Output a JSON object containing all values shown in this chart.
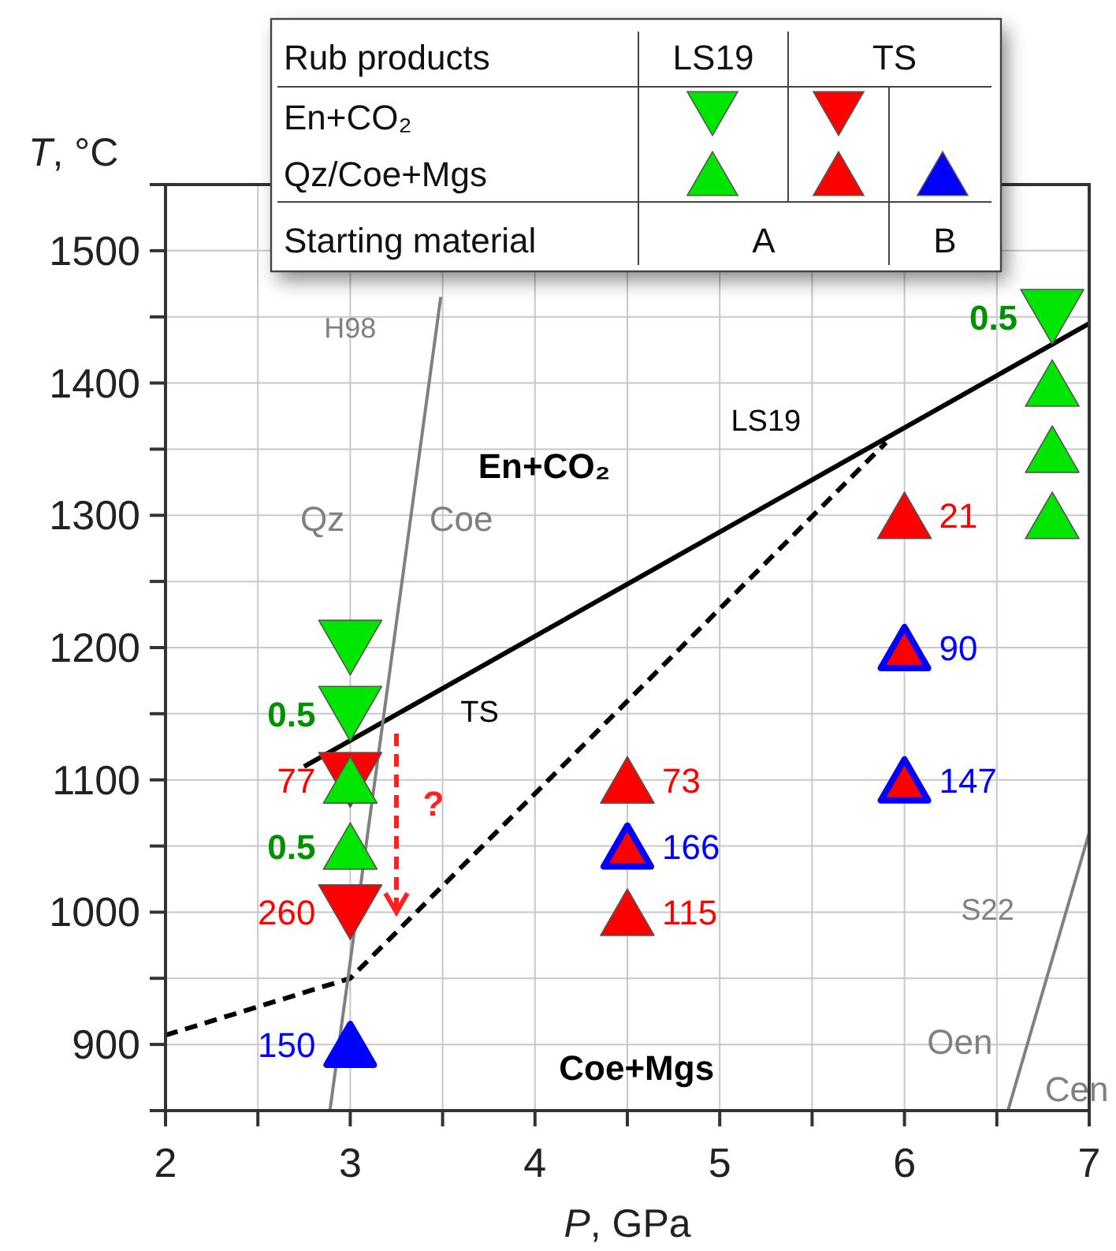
{
  "chart_data": {
    "type": "scatter",
    "xlabel": "P, GPa",
    "ylabel": "T, °C",
    "xlim": [
      2,
      7.0
    ],
    "ylim": [
      850,
      1550
    ],
    "xticks": [
      2,
      {
        "value": 2.5,
        "label": null
      },
      3,
      {
        "value": 3.5,
        "label": null
      },
      4,
      {
        "value": 4.5,
        "label": null
      },
      5,
      {
        "value": 5.5,
        "label": null
      },
      6,
      {
        "value": 6.5,
        "label": null
      },
      7
    ],
    "yticks": [
      {
        "value": 850,
        "label": null
      },
      900,
      {
        "value": 950,
        "label": null
      },
      1000,
      {
        "value": 1050,
        "label": null
      },
      1100,
      {
        "value": 1150,
        "label": null
      },
      1200,
      {
        "value": 1250,
        "label": null
      },
      1300,
      {
        "value": 1350,
        "label": null
      },
      1400,
      {
        "value": 1450,
        "label": null
      },
      1500,
      {
        "value": 1550,
        "label": null
      }
    ],
    "grid": true,
    "series": [
      {
        "type": "line",
        "color": "#000000",
        "line_style": "solid",
        "x": [
          2.75,
          7
        ],
        "values": [
          1110,
          1445
        ]
      },
      {
        "type": "line",
        "color": "#000000",
        "line_style": "dashed",
        "x": [
          2,
          3,
          5.9
        ],
        "values": [
          907,
          950,
          1355
        ]
      },
      {
        "type": "line",
        "color": "#808080",
        "line_style": "solid",
        "x": [
          2.89,
          3.49
        ],
        "values": [
          850,
          1465
        ]
      },
      {
        "type": "line",
        "color": "#808080",
        "line_style": "solid",
        "x": [
          6.56,
          7
        ],
        "values": [
          850,
          1060
        ]
      },
      {
        "marker": "triangle-down",
        "color": "#ff0000",
        "x": [
          3,
          3
        ],
        "values": [
          1100,
          1000
        ]
      },
      {
        "marker": "triangle",
        "color": "#ff0000",
        "x": [
          6,
          4.5,
          4.5
        ],
        "values": [
          1300,
          1100,
          1000
        ]
      },
      {
        "marker": "triangle",
        "color": "#0000ff",
        "colors": [
          "#0000ff",
          "#ff0000",
          "#ff0000",
          "#ff0000"
        ],
        "x": [
          3,
          4.5,
          6,
          6
        ],
        "values": [
          900,
          1050,
          1200,
          1100
        ]
      },
      {
        "marker": "triangle-down",
        "color": "#00e600",
        "x": [
          3,
          3,
          6.8
        ],
        "values": [
          1200,
          1150,
          1450
        ]
      },
      {
        "marker": "triangle",
        "color": "#00e600",
        "x": [
          3,
          3,
          6.8,
          6.8,
          6.8
        ],
        "values": [
          1100,
          1050,
          1400,
          1350,
          1300
        ]
      }
    ],
    "annotations": [
      "Rub products",
      "LS19",
      "TS",
      "En+CO₂",
      "Qz/Coe+Mgs",
      "Starting material",
      "A",
      "B",
      "En+CO₂",
      "Coe+Mgs",
      "Qz",
      "Coe",
      "H98",
      "LS19",
      "TS",
      "S22",
      "Oen",
      "Cen",
      "?",
      {
        "text": "77",
        "x": 3,
        "y": 1100
      },
      {
        "text": "260",
        "x": 3,
        "y": 1000
      },
      {
        "text": "21",
        "x": 6,
        "y": 1300
      },
      {
        "text": "73",
        "x": 4.5,
        "y": 1100
      },
      {
        "text": "115",
        "x": 4.5,
        "y": 1000
      },
      {
        "text": "150",
        "x": 3,
        "y": 900
      },
      {
        "text": "166",
        "x": 4.5,
        "y": 1050
      },
      {
        "text": "90",
        "x": 6,
        "y": 1200
      },
      {
        "text": "147",
        "x": 6,
        "y": 1100
      },
      {
        "text": "0.5",
        "x": 3,
        "y": 1150
      },
      {
        "text": "0.5",
        "x": 6.8,
        "y": 1450
      },
      {
        "text": "0.5",
        "x": 3,
        "y": 1050
      }
    ]
  }
}
